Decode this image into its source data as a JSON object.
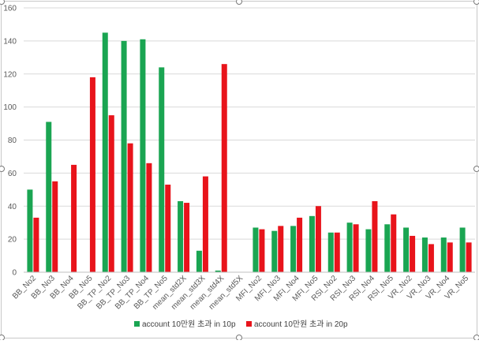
{
  "chart_data": {
    "type": "bar",
    "title": "",
    "xlabel": "",
    "ylabel": "",
    "ylim": [
      0,
      160
    ],
    "yticks": [
      0,
      20,
      40,
      60,
      80,
      100,
      120,
      140,
      160
    ],
    "grid": true,
    "legend_position": "bottom",
    "categories": [
      "BB_No2",
      "BB_No3",
      "BB_No4",
      "BB_No5",
      "BB_TP_No2",
      "BB_TP_No3",
      "BB_TP_No4",
      "BB_TP_No5",
      "mean_std2X",
      "mean_std3X",
      "mean_std4X",
      "mean_std5X",
      "MFI_No2",
      "MFI_No3",
      "MFI_No4",
      "MFI_No5",
      "RSI_No2",
      "RSI_No3",
      "RSI_No4",
      "RSI_No5",
      "VR_No2",
      "VR_No3",
      "VR_No4",
      "VR_No5"
    ],
    "series": [
      {
        "name": "account 10만원 초과 in 10p",
        "color": "#1aa552",
        "values": [
          50,
          91,
          0,
          0,
          145,
          140,
          141,
          124,
          43,
          13,
          1,
          0,
          27,
          25,
          28,
          34,
          24,
          30,
          26,
          29,
          27,
          21,
          21,
          27
        ]
      },
      {
        "name": "account 10만원 초과 in 20p",
        "color": "#e8141b",
        "values": [
          33,
          55,
          65,
          118,
          95,
          78,
          66,
          53,
          42,
          58,
          126,
          0,
          26,
          28,
          33,
          40,
          24,
          29,
          43,
          35,
          22,
          17,
          18,
          18
        ]
      }
    ]
  }
}
